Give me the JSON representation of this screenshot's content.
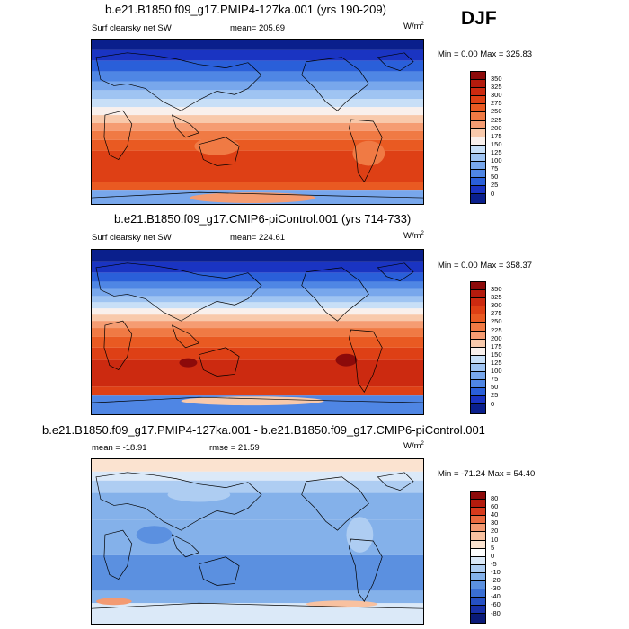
{
  "season": "DJF",
  "panels": [
    {
      "title": "b.e21.B1850.f09_g17.PMIP4-127ka.001 (yrs 190-209)",
      "left_label": "Surf clearsky net SW",
      "center_label": "mean= 205.69",
      "units_base": "W/m",
      "units_exp": "2",
      "minmax": "Min =   0.00 Max = 325.83",
      "colorbar_labels": [
        "350",
        "325",
        "300",
        "275",
        "250",
        "225",
        "200",
        "175",
        "150",
        "125",
        "100",
        "75",
        "50",
        "25",
        "0"
      ],
      "colorbar_colors": [
        "#8c0a0a",
        "#b31b0d",
        "#cc2a10",
        "#de4015",
        "#e95a22",
        "#f07a44",
        "#f59c72",
        "#f8c9ab",
        "#f9f0ec",
        "#c8dff7",
        "#9fc4f2",
        "#78a7ec",
        "#4f86e4",
        "#2a5fd9",
        "#1a34c2",
        "#0a1f8c"
      ],
      "chart_data": {
        "type": "heatmap",
        "title": "b.e21.B1850.f09_g17.PMIP4-127ka.001 (yrs 190-209)",
        "variable": "Surf clearsky net SW",
        "mean": 205.69,
        "min": 0.0,
        "max": 325.83,
        "levels": [
          0,
          25,
          50,
          75,
          100,
          125,
          150,
          175,
          200,
          225,
          250,
          275,
          300,
          325,
          350
        ],
        "projection": "cylindrical equidistant, global, Pacific-centered"
      }
    },
    {
      "title": "b.e21.B1850.f09_g17.CMIP6-piControl.001 (yrs 714-733)",
      "left_label": "Surf clearsky net SW",
      "center_label": "mean= 224.61",
      "units_base": "W/m",
      "units_exp": "2",
      "minmax": "Min =   0.00 Max = 358.37",
      "colorbar_labels": [
        "350",
        "325",
        "300",
        "275",
        "250",
        "225",
        "200",
        "175",
        "150",
        "125",
        "100",
        "75",
        "50",
        "25",
        "0"
      ],
      "colorbar_colors": [
        "#8c0a0a",
        "#b31b0d",
        "#cc2a10",
        "#de4015",
        "#e95a22",
        "#f07a44",
        "#f59c72",
        "#f8c9ab",
        "#f9f0ec",
        "#c8dff7",
        "#9fc4f2",
        "#78a7ec",
        "#4f86e4",
        "#2a5fd9",
        "#1a34c2",
        "#0a1f8c"
      ],
      "chart_data": {
        "type": "heatmap",
        "title": "b.e21.B1850.f09_g17.CMIP6-piControl.001 (yrs 714-733)",
        "variable": "Surf clearsky net SW",
        "mean": 224.61,
        "min": 0.0,
        "max": 358.37,
        "levels": [
          0,
          25,
          50,
          75,
          100,
          125,
          150,
          175,
          200,
          225,
          250,
          275,
          300,
          325,
          350
        ],
        "projection": "cylindrical equidistant, global, Pacific-centered"
      }
    },
    {
      "title": "b.e21.B1850.f09_g17.PMIP4-127ka.001 - b.e21.B1850.f09_g17.CMIP6-piControl.001",
      "left_label": "mean = -18.91",
      "center_label": "rmse =  21.59",
      "units_base": "W/m",
      "units_exp": "2",
      "minmax": "Min = -71.24 Max =  54.40",
      "colorbar_labels": [
        "80",
        "60",
        "40",
        "30",
        "20",
        "10",
        "5",
        "0",
        "-5",
        "-10",
        "-20",
        "-30",
        "-40",
        "-60",
        "-80"
      ],
      "colorbar_colors": [
        "#8c0a0a",
        "#b31b0d",
        "#d73a1c",
        "#ea6a3f",
        "#f39a72",
        "#f8c1a0",
        "#fbe3d0",
        "#ffffff",
        "#dbe9f8",
        "#aecdf2",
        "#84b1ea",
        "#5b90e0",
        "#3a6fd4",
        "#2650c4",
        "#1830a8",
        "#0a1a78"
      ],
      "chart_data": {
        "type": "heatmap",
        "title": "b.e21.B1850.f09_g17.PMIP4-127ka.001 - b.e21.B1850.f09_g17.CMIP6-piControl.001",
        "variable": "difference",
        "mean": -18.91,
        "rmse": 21.59,
        "min": -71.24,
        "max": 54.4,
        "levels": [
          -80,
          -60,
          -40,
          -30,
          -20,
          -10,
          -5,
          0,
          5,
          10,
          20,
          30,
          40,
          60,
          80
        ],
        "projection": "cylindrical equidistant, global, Pacific-centered"
      }
    }
  ]
}
